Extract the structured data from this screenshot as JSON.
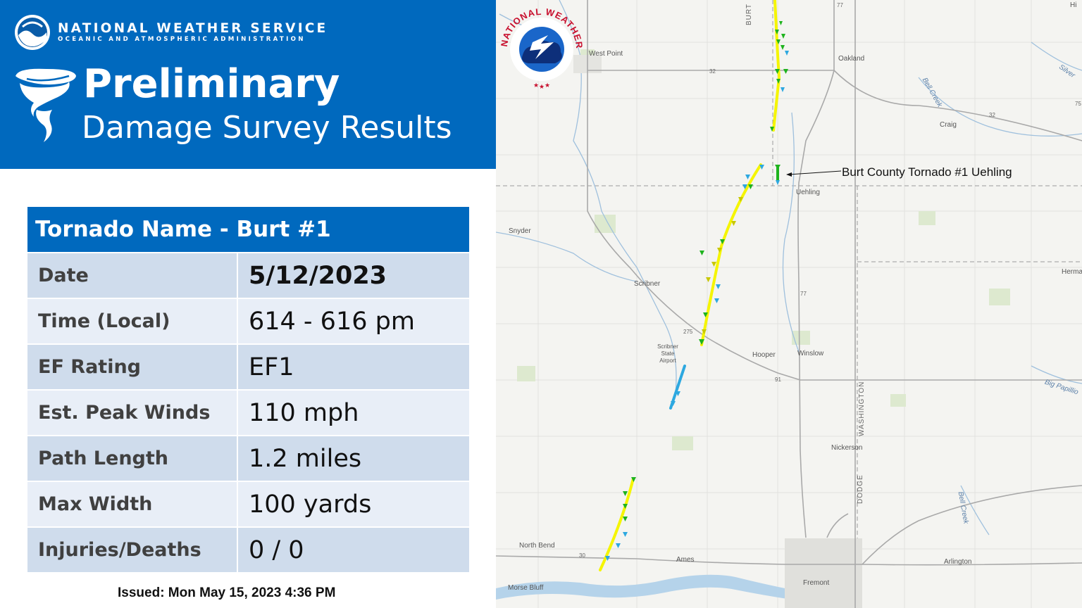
{
  "header": {
    "agency_name": "NATIONAL WEATHER SERVICE",
    "agency_sub": "OCEANIC AND ATMOSPHERIC ADMINISTRATION",
    "noaa_logo_text": "NOAA",
    "title_main": "Preliminary",
    "title_sub": "Damage Survey Results",
    "color": "#0069be"
  },
  "table": {
    "title": "Tornado Name - Burt #1",
    "rows": [
      {
        "label": "Date",
        "value": "5/12/2023"
      },
      {
        "label": "Time (Local)",
        "value": "614 - 616 pm"
      },
      {
        "label": "EF Rating",
        "value": "EF1"
      },
      {
        "label": "Est. Peak Winds",
        "value": "110 mph"
      },
      {
        "label": "Path Length",
        "value": "1.2 miles"
      },
      {
        "label": "Max Width",
        "value": "100 yards"
      },
      {
        "label": "Injuries/Deaths",
        "value": "0 / 0"
      }
    ]
  },
  "issued": "Issued: Mon May 15, 2023 4:36 PM",
  "map": {
    "annotation": "Burt County Tornado #1 Uehling",
    "places": [
      "West Point",
      "Oakland",
      "Craig",
      "Uehling",
      "Snyder",
      "Scribner",
      "Scribner State Airport",
      "Hooper",
      "Winslow",
      "Nickerson",
      "North Bend",
      "Ames",
      "Fremont",
      "Morse Bluff",
      "Arlington",
      "Herma",
      "Hi"
    ],
    "counties": [
      "BURT",
      "WASHINGTON",
      "DODGE"
    ],
    "waterways": [
      "Silver",
      "Bell Creek",
      "Bell Creek",
      "Big Papillio"
    ],
    "routes": [
      "32",
      "77",
      "77",
      "275",
      "91",
      "30",
      "32",
      "75"
    ],
    "legend_colors": {
      "ef0_track": "#f5f500",
      "ef1_marker": "#1eb31e",
      "ef0_marker": "#c8c800",
      "ef_unknown_marker": "#2da8e0"
    },
    "nws_logo_text": "NATIONAL WEATHER SERVICE"
  }
}
